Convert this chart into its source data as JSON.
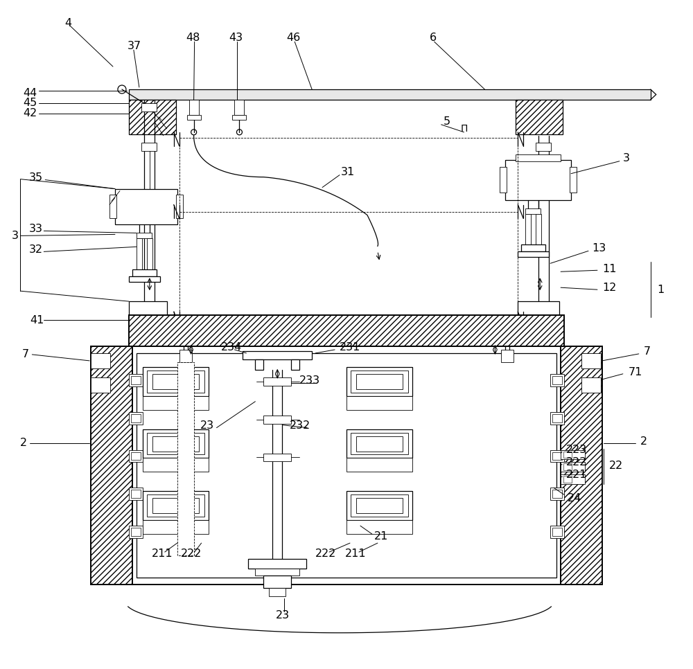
{
  "bg_color": "#ffffff",
  "fig_width": 10.0,
  "fig_height": 9.66,
  "dpi": 100
}
